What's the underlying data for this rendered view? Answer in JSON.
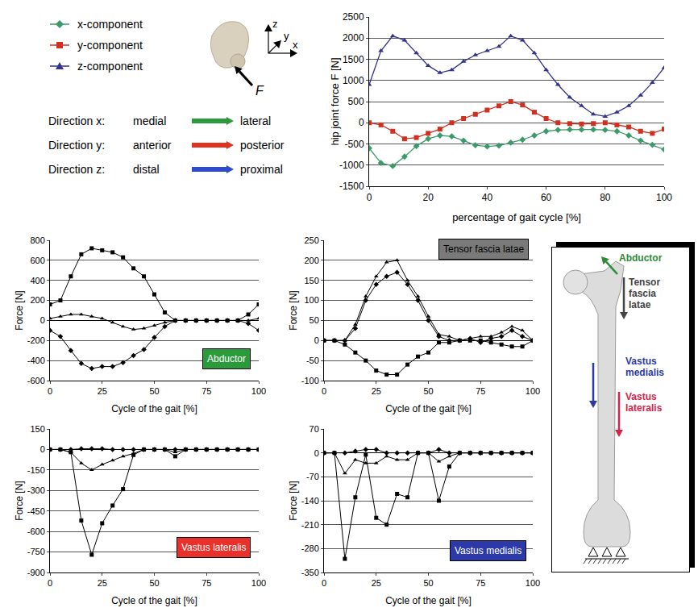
{
  "legend_panel": {
    "force_label": "F",
    "axes": [
      "z",
      "y",
      "x"
    ],
    "directions": [
      {
        "label": "Direction x:",
        "from": "medial",
        "to": "lateral",
        "color": "#2e9a3e"
      },
      {
        "label": "Direction y:",
        "from": "anterior",
        "to": "posterior",
        "color": "#e0321e"
      },
      {
        "label": "Direction z:",
        "from": "distal",
        "to": "proximal",
        "color": "#2b4bd0"
      }
    ]
  },
  "chart_data": [
    {
      "type": "line",
      "xlabel": "percentage of gait cycle [%]",
      "ylabel": "hip joint force F [N]",
      "x": [
        0,
        4,
        8,
        12,
        16,
        20,
        24,
        28,
        32,
        36,
        40,
        44,
        48,
        52,
        56,
        60,
        64,
        68,
        72,
        76,
        80,
        84,
        88,
        92,
        96,
        100
      ],
      "series": [
        {
          "name": "x-component",
          "color": "#3a9a6a",
          "marker": "diamond",
          "values": [
            -600,
            -950,
            -1020,
            -800,
            -550,
            -380,
            -300,
            -320,
            -420,
            -530,
            -560,
            -540,
            -470,
            -400,
            -300,
            -200,
            -170,
            -160,
            -160,
            -160,
            -170,
            -200,
            -300,
            -420,
            -520,
            -630
          ]
        },
        {
          "name": "y-component",
          "color": "#d03020",
          "marker": "square",
          "values": [
            0,
            -50,
            -200,
            -380,
            -350,
            -250,
            -150,
            0,
            100,
            200,
            300,
            400,
            500,
            420,
            250,
            100,
            0,
            -20,
            -30,
            -20,
            0,
            -50,
            -100,
            -200,
            -250,
            -150
          ]
        },
        {
          "name": "z-component",
          "color": "#33338a",
          "marker": "triangle",
          "values": [
            900,
            1700,
            2050,
            1950,
            1650,
            1350,
            1180,
            1250,
            1450,
            1600,
            1700,
            1800,
            2050,
            1950,
            1650,
            1250,
            900,
            600,
            400,
            200,
            150,
            250,
            400,
            650,
            950,
            1300
          ]
        }
      ],
      "xlim": [
        0,
        100
      ],
      "xticks": [
        0,
        20,
        40,
        60,
        80,
        100
      ],
      "ylim": [
        -1500,
        2500
      ],
      "yticks": [
        -1500,
        -1000,
        -500,
        0,
        500,
        1000,
        1500,
        2000,
        2500
      ],
      "grid": true
    },
    {
      "type": "line",
      "title": "Abductor",
      "color": "#2a9a3a",
      "xlabel": "Cycle of the gait [%]",
      "ylabel": "Force [N]",
      "x": [
        0,
        5,
        10,
        15,
        20,
        25,
        30,
        35,
        40,
        45,
        50,
        55,
        60,
        65,
        70,
        75,
        80,
        85,
        90,
        95,
        100
      ],
      "series": [
        {
          "color": "#000000",
          "marker": "diamond",
          "values": [
            -100,
            -160,
            -300,
            -430,
            -480,
            -460,
            -460,
            -420,
            -350,
            -290,
            -170,
            -60,
            0,
            0,
            0,
            0,
            0,
            0,
            0,
            -30,
            -100
          ]
        },
        {
          "color": "#000000",
          "marker": "square",
          "values": [
            160,
            200,
            440,
            660,
            720,
            700,
            680,
            630,
            520,
            440,
            260,
            80,
            0,
            0,
            0,
            0,
            0,
            0,
            0,
            60,
            160
          ]
        },
        {
          "color": "#000000",
          "marker": "triangle",
          "values": [
            20,
            40,
            60,
            60,
            40,
            20,
            -20,
            -60,
            -90,
            -80,
            -50,
            -20,
            0,
            0,
            0,
            0,
            0,
            0,
            0,
            0,
            20
          ]
        }
      ],
      "xlim": [
        0,
        100
      ],
      "xticks": [
        0,
        25,
        50,
        75,
        100
      ],
      "ylim": [
        -600,
        800
      ],
      "yticks": [
        -600,
        -400,
        -200,
        0,
        200,
        400,
        600,
        800
      ],
      "grid": true
    },
    {
      "type": "line",
      "title": "Tensor fascia latae",
      "color": "#7a7a7a",
      "xlabel": "Cycle of the gait [%]",
      "ylabel": "Force [N]",
      "x": [
        0,
        5,
        10,
        15,
        20,
        25,
        30,
        35,
        40,
        45,
        50,
        55,
        60,
        65,
        70,
        75,
        80,
        85,
        90,
        95,
        100
      ],
      "series": [
        {
          "color": "#000000",
          "marker": "diamond",
          "values": [
            0,
            0,
            0,
            30,
            100,
            140,
            160,
            170,
            140,
            100,
            50,
            10,
            0,
            0,
            5,
            -5,
            5,
            10,
            25,
            10,
            0
          ]
        },
        {
          "color": "#000000",
          "marker": "square",
          "values": [
            0,
            0,
            -10,
            -30,
            -50,
            -75,
            -85,
            -85,
            -60,
            -40,
            -30,
            -5,
            -5,
            0,
            0,
            0,
            -5,
            -10,
            -15,
            -15,
            0
          ]
        },
        {
          "color": "#000000",
          "marker": "triangle",
          "values": [
            0,
            0,
            0,
            40,
            110,
            160,
            195,
            200,
            150,
            110,
            60,
            15,
            10,
            0,
            5,
            10,
            10,
            20,
            35,
            25,
            0
          ]
        }
      ],
      "xlim": [
        0,
        100
      ],
      "xticks": [
        0,
        25,
        50,
        75,
        100
      ],
      "ylim": [
        -100,
        250
      ],
      "yticks": [
        -100,
        -50,
        0,
        50,
        100,
        150,
        200,
        250
      ],
      "grid": true
    },
    {
      "type": "line",
      "title": "Vastus lateralis",
      "color": "#e8312a",
      "xlabel": "Cycle of the gait [%]",
      "ylabel": "Force [N]",
      "x": [
        0,
        5,
        10,
        15,
        20,
        25,
        30,
        35,
        40,
        45,
        50,
        55,
        60,
        65,
        70,
        75,
        80,
        85,
        90,
        95,
        100
      ],
      "series": [
        {
          "color": "#000000",
          "marker": "diamond",
          "values": [
            0,
            0,
            0,
            5,
            5,
            5,
            0,
            0,
            0,
            0,
            0,
            0,
            0,
            0,
            0,
            0,
            0,
            0,
            0,
            0,
            0
          ]
        },
        {
          "color": "#000000",
          "marker": "square",
          "values": [
            0,
            0,
            -20,
            -520,
            -770,
            -540,
            -410,
            -290,
            -40,
            0,
            0,
            0,
            -50,
            0,
            0,
            0,
            0,
            0,
            0,
            0,
            0
          ]
        },
        {
          "color": "#000000",
          "marker": "triangle",
          "values": [
            0,
            0,
            -20,
            -100,
            -150,
            -110,
            -80,
            -50,
            -30,
            0,
            0,
            0,
            -20,
            0,
            0,
            0,
            0,
            0,
            0,
            0,
            0
          ]
        }
      ],
      "xlim": [
        0,
        100
      ],
      "xticks": [
        0,
        25,
        50,
        75,
        100
      ],
      "ylim": [
        -900,
        150
      ],
      "yticks": [
        -900,
        -750,
        -600,
        -450,
        -300,
        -150,
        0,
        150
      ],
      "grid": true
    },
    {
      "type": "line",
      "title": "Vastus medialis",
      "color": "#2b3aa8",
      "xlabel": "Cycle of the gait [%]",
      "ylabel": "Force [N]",
      "x": [
        0,
        5,
        10,
        15,
        20,
        25,
        30,
        35,
        40,
        45,
        50,
        55,
        60,
        65,
        70,
        75,
        80,
        85,
        90,
        95,
        100
      ],
      "series": [
        {
          "color": "#000000",
          "marker": "diamond",
          "values": [
            0,
            0,
            0,
            5,
            10,
            10,
            0,
            0,
            0,
            0,
            0,
            10,
            0,
            0,
            0,
            0,
            0,
            0,
            0,
            0,
            0
          ]
        },
        {
          "color": "#000000",
          "marker": "square",
          "values": [
            0,
            0,
            -310,
            -130,
            -5,
            -190,
            -210,
            -120,
            -130,
            0,
            0,
            -140,
            -40,
            0,
            0,
            0,
            0,
            0,
            0,
            0,
            0
          ]
        },
        {
          "color": "#000000",
          "marker": "triangle",
          "values": [
            0,
            0,
            -60,
            -20,
            -30,
            -30,
            -10,
            -20,
            -20,
            0,
            0,
            -25,
            -10,
            0,
            0,
            0,
            0,
            0,
            0,
            0,
            0
          ]
        }
      ],
      "xlim": [
        0,
        100
      ],
      "xticks": [
        0,
        25,
        50,
        75,
        100
      ],
      "ylim": [
        -350,
        70
      ],
      "yticks": [
        -350,
        -280,
        -210,
        -140,
        -70,
        0,
        70
      ],
      "grid": true
    }
  ],
  "diagram": {
    "labels": [
      {
        "text": "Abductor",
        "color": "#2e8b3a"
      },
      {
        "text": "Tensor fascia latae",
        "color": "#444444"
      },
      {
        "text": "Vastus medialis",
        "color": "#2b3aa8"
      },
      {
        "text": "Vastus lateralis",
        "color": "#d8244a"
      }
    ]
  }
}
